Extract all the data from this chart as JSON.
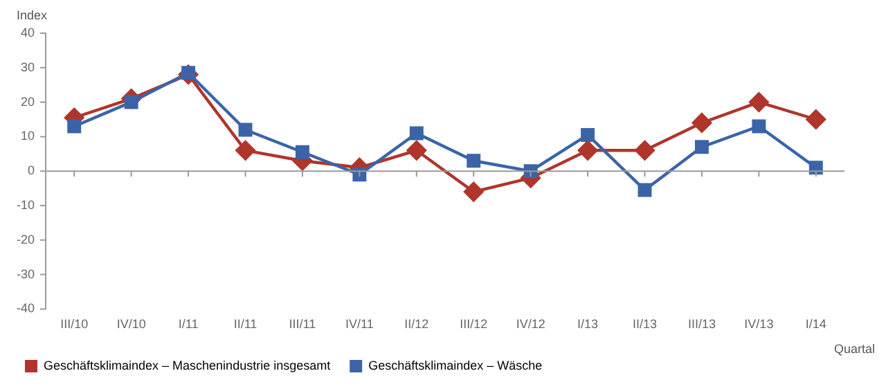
{
  "chart_data": {
    "type": "line",
    "ylabel": "Index",
    "xlabel": "Quartal",
    "categories": [
      "III/10",
      "IV/10",
      "I/11",
      "II/11",
      "III/11",
      "IV/11",
      "II/12",
      "III/12",
      "IV/12",
      "I/13",
      "II/13",
      "III/13",
      "IV/13",
      "I/14"
    ],
    "series": [
      {
        "name": "Geschäftsklimaindex – Maschenindustrie insgesamt",
        "color": "#b0352b",
        "marker": "diamond",
        "values": [
          15.5,
          21,
          28,
          6,
          3,
          1,
          6,
          -6,
          -2,
          6,
          6,
          14,
          20,
          15
        ]
      },
      {
        "name": "Geschäftsklimaindex – Wäsche",
        "color": "#3b64a8",
        "marker": "square",
        "values": [
          13,
          20,
          28.5,
          12,
          5.5,
          -1,
          11,
          3,
          0,
          10.5,
          -5.5,
          7,
          13,
          1
        ]
      }
    ],
    "ylim": [
      -40,
      40
    ],
    "yticks": [
      -40,
      -30,
      -20,
      -10,
      0,
      10,
      20,
      30,
      40
    ],
    "grid": false,
    "ref_lines": [
      {
        "axis": "y",
        "value": 0,
        "color": "#9a9a9a"
      }
    ],
    "legend": "bottom left"
  }
}
